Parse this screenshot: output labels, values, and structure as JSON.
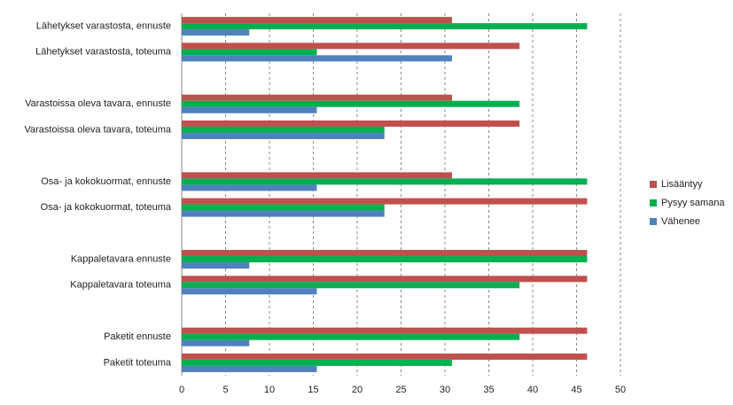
{
  "chart_data": {
    "type": "hbar",
    "categories": [
      "Lähetykset varastosta, ennuste",
      "Lähetykset varastosta, toteuma",
      null,
      "Varastoissa oleva tavara, ennuste",
      "Varastoissa oleva tavara, toteuma",
      null,
      "Osa- ja kokokuormat, ennuste",
      "Osa- ja kokokuormat, toteuma",
      null,
      "Kappaletavara ennuste",
      "Kappaletavara toteuma",
      null,
      "Paketit ennuste",
      "Paketit toteuma"
    ],
    "series": [
      {
        "name": "Lisääntyy",
        "color": "#c0504d",
        "values": [
          30.8,
          38.5,
          null,
          30.8,
          38.5,
          null,
          30.8,
          46.2,
          null,
          46.2,
          46.2,
          null,
          46.2,
          46.2
        ]
      },
      {
        "name": "Pysyy samana",
        "color": "#00b050",
        "values": [
          46.2,
          15.4,
          null,
          38.5,
          23.1,
          null,
          46.2,
          23.1,
          null,
          46.2,
          38.5,
          null,
          38.5,
          30.8
        ]
      },
      {
        "name": "Vähenee",
        "color": "#4f81bd",
        "values": [
          7.7,
          30.8,
          null,
          15.4,
          23.1,
          null,
          15.4,
          23.1,
          null,
          7.7,
          15.4,
          null,
          7.7,
          15.4
        ]
      }
    ],
    "xlim": [
      0,
      50
    ],
    "xticks": [
      0,
      5,
      10,
      15,
      20,
      25,
      30,
      35,
      40,
      45,
      50
    ],
    "grid": true,
    "legend": "right"
  }
}
